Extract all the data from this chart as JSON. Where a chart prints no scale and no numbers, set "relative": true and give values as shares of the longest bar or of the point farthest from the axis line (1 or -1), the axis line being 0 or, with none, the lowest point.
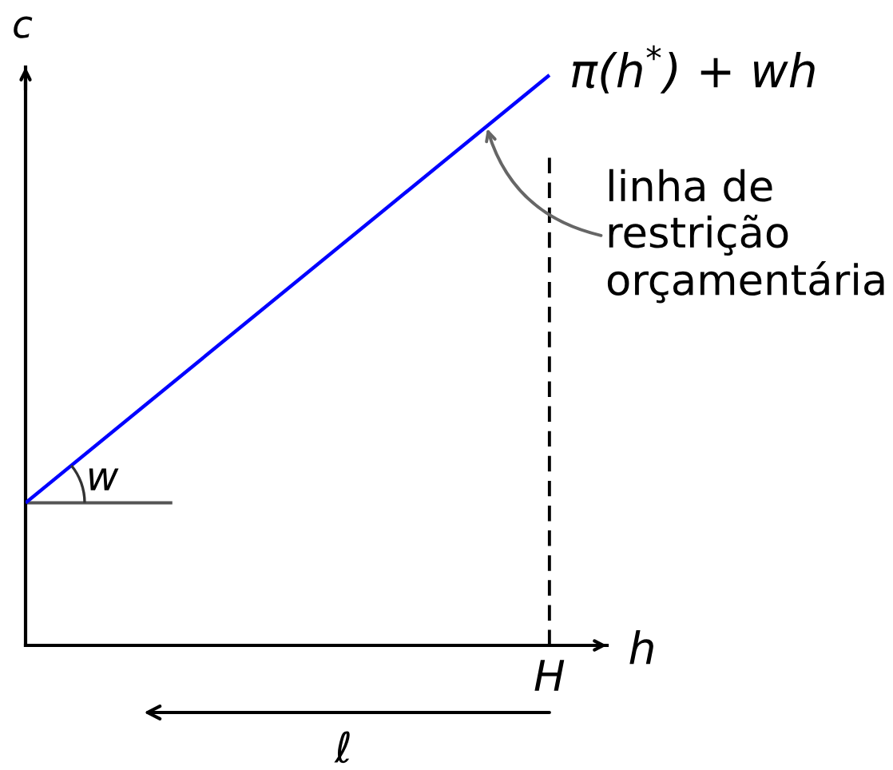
{
  "chart_data": {
    "type": "line",
    "relative": true,
    "xlabel": "h",
    "ylabel": "c",
    "categories": [
      null,
      null
    ],
    "series": [
      {
        "name": "π(h$^{*}$) + wh",
        "color": "#0000ff",
        "values": [
          0.25,
          1
        ]
      }
    ],
    "annotations": [
      "linha de\nrestrição\norçamentária",
      "w",
      "H",
      "ℓ"
    ]
  }
}
